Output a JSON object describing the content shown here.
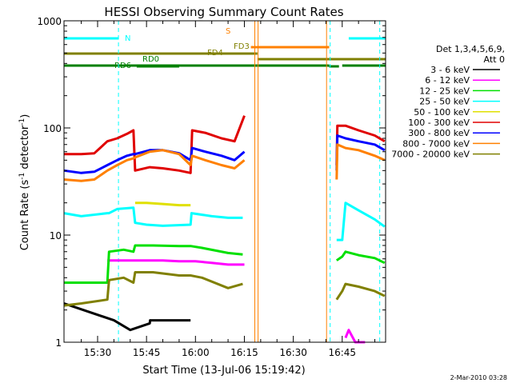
{
  "chart_data": {
    "type": "line",
    "title": "HESSI Observing Summary Count Rates",
    "xlabel": "Start Time (13-Jul-06 15:19:42)",
    "ylabel": "Count Rate (s⁻¹ detector⁻¹)",
    "ylabel_main": "Count Rate (s",
    "ylabel_sup1": "-1",
    "ylabel_mid": " detector",
    "ylabel_sup2": "-1",
    "ylabel_end": ")",
    "x_ticks": [
      "15:30",
      "15:45",
      "16:00",
      "16:15",
      "16:30",
      "16:45"
    ],
    "x_tick_minutes": [
      930,
      945,
      960,
      975,
      990,
      1005
    ],
    "xlim_minutes": [
      919.7,
      1018.3
    ],
    "y_scale": "log",
    "ylim": [
      1,
      1000
    ],
    "y_ticks": [
      "1",
      "10",
      "100",
      "1000"
    ],
    "y_tick_values": [
      1,
      10,
      100,
      1000
    ],
    "legend": {
      "position": "right",
      "header_line1": "Det 1,3,4,5,6,9,",
      "header_line2": "Att 0",
      "entries": [
        {
          "label": "3 - 6 keV",
          "color": "#000000"
        },
        {
          "label": "6 - 12 keV",
          "color": "#ff00ff"
        },
        {
          "label": "12 - 25 keV",
          "color": "#00e000"
        },
        {
          "label": "25 - 50 keV",
          "color": "#00ffff"
        },
        {
          "label": "50 - 100 keV",
          "color": "#e0e000"
        },
        {
          "label": "100 - 300 keV",
          "color": "#e00000"
        },
        {
          "label": "300 - 800 keV",
          "color": "#0000ff"
        },
        {
          "label": "800 - 7000 keV",
          "color": "#ff8000"
        },
        {
          "label": "7000 - 20000 keV",
          "color": "#808000"
        }
      ]
    },
    "observing_flags": [
      {
        "label": "N",
        "color": "#00ffff",
        "segments": [
          [
            919.7,
            936.5
          ],
          [
            1007,
            1018.3
          ]
        ]
      },
      {
        "label": "S",
        "color": "#ff8000",
        "segments": [
          [
            977,
            1001
          ]
        ]
      },
      {
        "label": "FD3",
        "color": "#808000",
        "segments": [
          [
            919.7,
            979
          ]
        ]
      },
      {
        "label": "FD4",
        "color": "#808000",
        "segments": [
          [
            979,
            1018.3
          ]
        ]
      },
      {
        "label": "RD0",
        "color": "#008000",
        "segments": [
          [
            919.7,
            1001
          ],
          [
            1005,
            1018.3
          ]
        ]
      },
      {
        "label": "RD6",
        "color": "#008000",
        "segments": [
          [
            942,
            955
          ],
          [
            1001,
            1004
          ]
        ]
      }
    ],
    "night_boundaries_minutes": [
      936.4,
      1001.3,
      1016.5
    ],
    "saa_boundaries_minutes": [
      978.2,
      979.2,
      1000.2
    ],
    "series": [
      {
        "name": "3 - 6 keV",
        "color": "#000000",
        "segments": [
          {
            "x": [
              919.7,
              935,
              940,
              946,
              946.1,
              956,
              958.5
            ],
            "y": [
              2.3,
              1.6,
              1.3,
              1.5,
              1.6,
              1.6,
              1.6
            ]
          }
        ]
      },
      {
        "name": "6 - 12 keV",
        "color": "#ff00ff",
        "segments": [
          {
            "x": [
              933,
              936,
              941,
              945,
              950,
              955,
              960,
              965,
              970,
              975
            ],
            "y": [
              5.8,
              5.8,
              5.8,
              5.8,
              5.8,
              5.7,
              5.7,
              5.5,
              5.3,
              5.3
            ]
          },
          {
            "x": [
              1006,
              1007,
              1009,
              1012
            ],
            "y": [
              1.1,
              1.3,
              1.0,
              1.0
            ]
          }
        ]
      },
      {
        "name": "12 - 25 keV",
        "color": "#00e000",
        "segments": [
          {
            "x": [
              919.7,
              925,
              933,
              933.5,
              938,
              941,
              941.5,
              947,
              955,
              958.5,
              962,
              970,
              974.5
            ],
            "y": [
              3.6,
              3.6,
              3.6,
              7.0,
              7.3,
              7.0,
              8.0,
              8.0,
              7.9,
              7.9,
              7.6,
              6.8,
              6.6
            ]
          },
          {
            "x": [
              1003.3,
              1005,
              1006,
              1010,
              1015,
              1018
            ],
            "y": [
              5.8,
              6.3,
              7.0,
              6.5,
              6.1,
              5.5
            ]
          }
        ]
      },
      {
        "name": "25 - 50 keV",
        "color": "#00ffff",
        "segments": [
          {
            "x": [
              919.7,
              925,
              933,
              933.5,
              936,
              941,
              941.5,
              945,
              950,
              958.5,
              958.8,
              965,
              970,
              974.5
            ],
            "y": [
              16,
              15,
              16,
              16,
              17.5,
              18,
              13,
              12.5,
              12.2,
              12.5,
              16,
              15,
              14.5,
              14.5
            ]
          },
          {
            "x": [
              1003.3,
              1005,
              1006,
              1010,
              1015,
              1018
            ],
            "y": [
              9,
              9,
              20,
              17,
              14,
              12
            ]
          }
        ]
      },
      {
        "name": "50 - 100 keV",
        "color": "#e0e000",
        "segments": [
          {
            "x": [
              941.5,
              945,
              950,
              955,
              958.5
            ],
            "y": [
              20,
              20,
              19.5,
              19,
              19
            ]
          }
        ]
      },
      {
        "name": "100 - 300 keV",
        "color": "#e00000",
        "segments": [
          {
            "x": [
              919.7,
              925,
              929,
              933,
              936,
              939,
              941,
              941.5,
              946,
              950,
              955,
              958.5,
              959,
              963,
              968,
              972,
              975
            ],
            "y": [
              57,
              57,
              58,
              75,
              80,
              88,
              95,
              40,
              43,
              42,
              40,
              38,
              95,
              90,
              80,
              75,
              130
            ]
          },
          {
            "x": [
              1003.3,
              1003.5,
              1006,
              1010,
              1015,
              1018
            ],
            "y": [
              45,
              105,
              105,
              95,
              85,
              75
            ]
          }
        ]
      },
      {
        "name": "300 - 800 keV",
        "color": "#0000ff",
        "segments": [
          {
            "x": [
              919.7,
              925,
              929,
              933,
              936,
              939,
              941,
              941.5,
              946,
              950,
              955,
              958.5,
              959,
              963,
              968,
              972,
              975
            ],
            "y": [
              40,
              38,
              39,
              45,
              50,
              55,
              57,
              57,
              62,
              62,
              58,
              50,
              65,
              60,
              55,
              50,
              60
            ]
          },
          {
            "x": [
              1003.3,
              1003.5,
              1006,
              1010,
              1015,
              1018
            ],
            "y": [
              40,
              85,
              80,
              75,
              70,
              62
            ]
          }
        ]
      },
      {
        "name": "800 - 7000 keV",
        "color": "#ff8000",
        "segments": [
          {
            "x": [
              919.7,
              925,
              929,
              933,
              936,
              939,
              941,
              941.5,
              946,
              950,
              955,
              958.5,
              959,
              963,
              968,
              972,
              975
            ],
            "y": [
              33,
              32,
              33,
              40,
              45,
              50,
              52,
              53,
              60,
              62,
              57,
              45,
              55,
              50,
              45,
              42,
              50
            ]
          },
          {
            "x": [
              1003.3,
              1003.5,
              1006,
              1010,
              1015,
              1018
            ],
            "y": [
              33,
              70,
              65,
              62,
              55,
              50
            ]
          }
        ]
      },
      {
        "name": "7000 - 20000 keV",
        "color": "#808000",
        "segments": [
          {
            "x": [
              919.7,
              925,
              933,
              933.5,
              938,
              941,
              941.5,
              947,
              955,
              958.5,
              962,
              970,
              974.5
            ],
            "y": [
              2.2,
              2.3,
              2.5,
              3.8,
              4.0,
              3.6,
              4.5,
              4.5,
              4.2,
              4.2,
              4.0,
              3.2,
              3.5
            ]
          },
          {
            "x": [
              1003.3,
              1005,
              1006,
              1010,
              1015,
              1018
            ],
            "y": [
              2.5,
              3.0,
              3.5,
              3.3,
              3.0,
              2.7
            ]
          }
        ]
      }
    ]
  },
  "footer": {
    "timestamp": "2-Mar-2010 03:28"
  }
}
